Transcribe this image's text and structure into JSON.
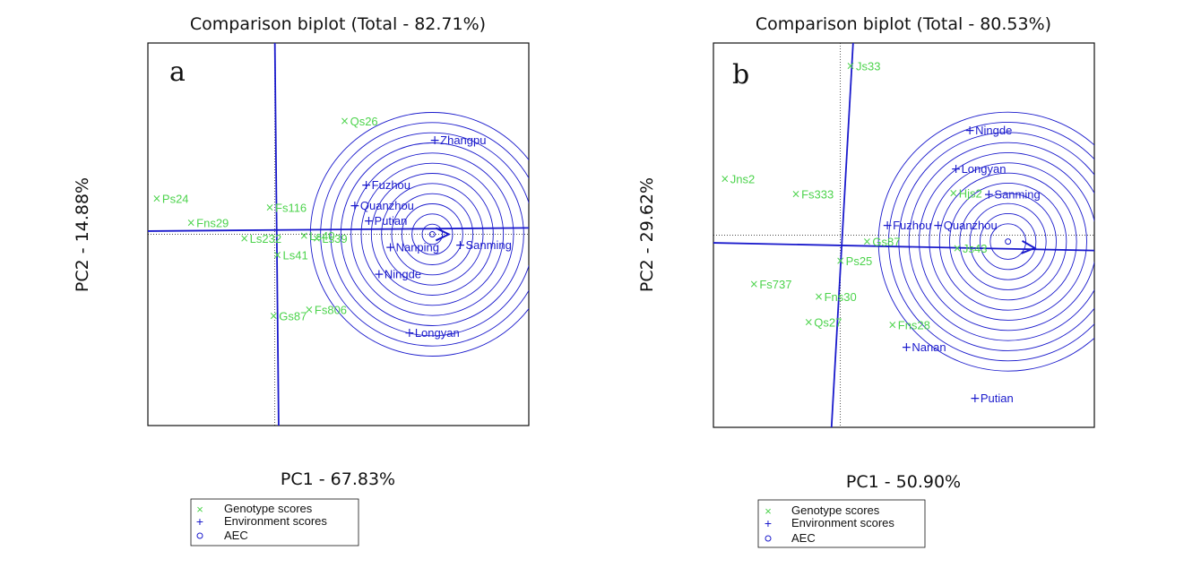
{
  "colors": {
    "genotype": "#4cd34c",
    "environment": "#1a1acc",
    "axes": "#111111"
  },
  "chart_data": [
    {
      "type": "scatter",
      "panel_label": "a",
      "title": "Comparison biplot (Total - 82.71%)",
      "xlabel": "PC1 - 67.83%",
      "ylabel": "PC2 - 14.88%",
      "xlim": [
        -1.0,
        2.0
      ],
      "ylim": [
        -1.5,
        1.5
      ],
      "legend_position": "below",
      "legend": [
        "Genotype scores",
        "Environment scores",
        "AEC"
      ],
      "genotypes": [
        {
          "name": "Qs26",
          "x": 0.55,
          "y": 0.89
        },
        {
          "name": "Ps24",
          "x": -0.93,
          "y": 0.28
        },
        {
          "name": "Fns29",
          "x": -0.66,
          "y": 0.09
        },
        {
          "name": "Fs116",
          "x": -0.04,
          "y": 0.21
        },
        {
          "name": "Ls232",
          "x": -0.24,
          "y": -0.03
        },
        {
          "name": "Ls40",
          "x": 0.23,
          "y": -0.01
        },
        {
          "name": "Ls39",
          "x": 0.33,
          "y": -0.03
        },
        {
          "name": "Ls41",
          "x": 0.02,
          "y": -0.16
        },
        {
          "name": "Gs87",
          "x": -0.01,
          "y": -0.64
        },
        {
          "name": "Fs806",
          "x": 0.27,
          "y": -0.59
        }
      ],
      "environments": [
        {
          "name": "Zhangpu",
          "x": 1.26,
          "y": 0.74
        },
        {
          "name": "Fuzhou",
          "x": 0.72,
          "y": 0.39
        },
        {
          "name": "Quanzhou",
          "x": 0.63,
          "y": 0.23
        },
        {
          "name": "Putian",
          "x": 0.74,
          "y": 0.11
        },
        {
          "name": "Nanping",
          "x": 0.91,
          "y": -0.1
        },
        {
          "name": "Sanming",
          "x": 1.46,
          "y": -0.08
        },
        {
          "name": "Ningde",
          "x": 0.82,
          "y": -0.31
        },
        {
          "name": "Longyan",
          "x": 1.06,
          "y": -0.77
        }
      ],
      "aec_center": {
        "x": 1.24,
        "y": 0.0
      },
      "aec_arrow_end": {
        "x": 1.37,
        "y": 0.0
      },
      "aec_abscissa_end": {
        "x": 2.0,
        "y": 0.05
      },
      "aec_ordinate": [
        {
          "x": 0.0,
          "y": 1.5
        },
        {
          "x": 0.03,
          "y": -1.5
        }
      ],
      "circle_radii": [
        0.08,
        0.16,
        0.24,
        0.32,
        0.4,
        0.48,
        0.56,
        0.64,
        0.72,
        0.8,
        0.88,
        0.96
      ]
    },
    {
      "type": "scatter",
      "panel_label": "b",
      "title": "Comparison biplot (Total - 80.53%)",
      "xlabel": "PC1 - 50.90%",
      "ylabel": "PC2 - 29.62%",
      "xlim": [
        -1.0,
        2.0
      ],
      "ylim": [
        -1.5,
        1.5
      ],
      "legend_position": "below",
      "legend": [
        "Genotype scores",
        "Environment scores",
        "AEC"
      ],
      "genotypes": [
        {
          "name": "Js33",
          "x": 0.08,
          "y": 1.32
        },
        {
          "name": "Jns2",
          "x": -0.91,
          "y": 0.44
        },
        {
          "name": "Fs333",
          "x": -0.35,
          "y": 0.32
        },
        {
          "name": "Hjs2",
          "x": 0.89,
          "y": 0.33
        },
        {
          "name": "Gs87",
          "x": 0.21,
          "y": -0.05
        },
        {
          "name": "Js43",
          "x": 0.92,
          "y": -0.1
        },
        {
          "name": "Ps25",
          "x": 0.0,
          "y": -0.2
        },
        {
          "name": "Fs737",
          "x": -0.68,
          "y": -0.38
        },
        {
          "name": "Fns30",
          "x": -0.17,
          "y": -0.48
        },
        {
          "name": "Qs27",
          "x": -0.25,
          "y": -0.68
        },
        {
          "name": "Fns28",
          "x": 0.41,
          "y": -0.7
        }
      ],
      "environments": [
        {
          "name": "Ningde",
          "x": 1.02,
          "y": 0.82
        },
        {
          "name": "Longyan",
          "x": 0.91,
          "y": 0.52
        },
        {
          "name": "Sanming",
          "x": 1.17,
          "y": 0.32
        },
        {
          "name": "Fuzhou",
          "x": 0.37,
          "y": 0.08
        },
        {
          "name": "Quanzhou",
          "x": 0.77,
          "y": 0.08
        },
        {
          "name": "Nanan",
          "x": 0.52,
          "y": -0.87
        },
        {
          "name": "Putian",
          "x": 1.06,
          "y": -1.27
        }
      ],
      "aec_center": {
        "x": 1.32,
        "y": -0.05
      },
      "aec_arrow_end": {
        "x": 1.53,
        "y": -0.1
      },
      "aec_abscissa_end": {
        "x": 2.0,
        "y": -0.12
      },
      "aec_ordinate": [
        {
          "x": 0.1,
          "y": 1.5
        },
        {
          "x": -0.07,
          "y": -1.5
        }
      ],
      "circle_radii": [
        0.14,
        0.22,
        0.3,
        0.38,
        0.46,
        0.54,
        0.62,
        0.7,
        0.78,
        0.86,
        0.94,
        1.02
      ]
    }
  ]
}
